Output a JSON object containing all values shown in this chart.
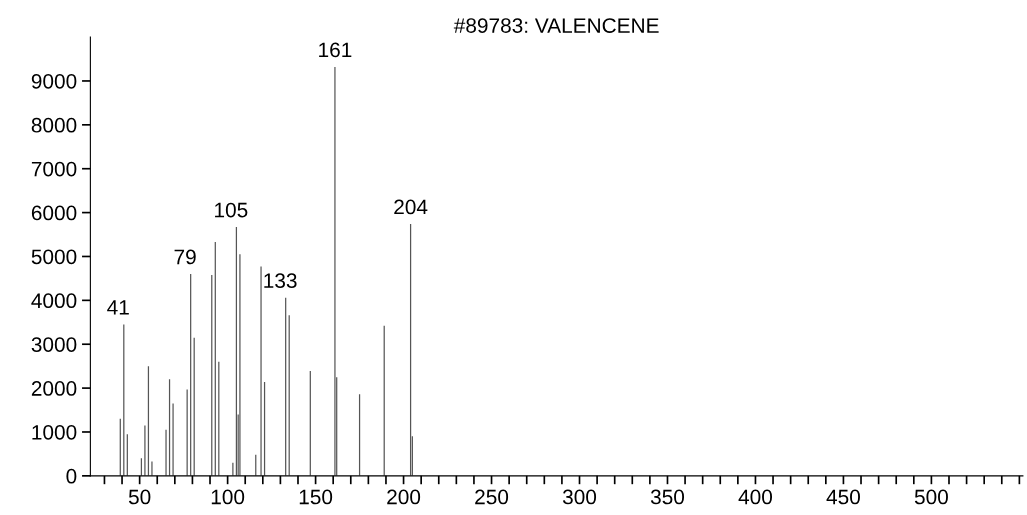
{
  "chart_data": {
    "type": "bar",
    "title": "#89783: VALENCENE",
    "x": [
      39,
      41,
      43,
      51,
      53,
      55,
      57,
      65,
      67,
      69,
      77,
      79,
      81,
      91,
      93,
      95,
      103,
      105,
      106,
      107,
      116,
      119,
      121,
      133,
      135,
      147,
      161,
      162,
      175,
      189,
      204,
      205
    ],
    "values": [
      1300,
      3450,
      950,
      400,
      1150,
      2500,
      330,
      1050,
      2200,
      1650,
      1970,
      4600,
      3150,
      4580,
      5330,
      2600,
      300,
      5670,
      1400,
      5050,
      480,
      4770,
      2140,
      4060,
      3660,
      2390,
      9320,
      2250,
      1860,
      3420,
      5740,
      900
    ],
    "color": "#555555",
    "xlim": [
      22,
      552
    ],
    "xticks": [
      {
        "value": 30,
        "label": null
      },
      {
        "value": 40,
        "label": null
      },
      50,
      {
        "value": 60,
        "label": null
      },
      {
        "value": 70,
        "label": null
      },
      {
        "value": 80,
        "label": null
      },
      {
        "value": 90,
        "label": null
      },
      100,
      {
        "value": 110,
        "label": null
      },
      {
        "value": 120,
        "label": null
      },
      {
        "value": 130,
        "label": null
      },
      {
        "value": 140,
        "label": null
      },
      150,
      {
        "value": 160,
        "label": null
      },
      {
        "value": 170,
        "label": null
      },
      {
        "value": 180,
        "label": null
      },
      {
        "value": 190,
        "label": null
      },
      200,
      {
        "value": 210,
        "label": null
      },
      {
        "value": 220,
        "label": null
      },
      {
        "value": 230,
        "label": null
      },
      {
        "value": 240,
        "label": null
      },
      250,
      {
        "value": 260,
        "label": null
      },
      {
        "value": 270,
        "label": null
      },
      {
        "value": 280,
        "label": null
      },
      {
        "value": 290,
        "label": null
      },
      300,
      {
        "value": 310,
        "label": null
      },
      {
        "value": 320,
        "label": null
      },
      {
        "value": 330,
        "label": null
      },
      {
        "value": 340,
        "label": null
      },
      350,
      {
        "value": 360,
        "label": null
      },
      {
        "value": 370,
        "label": null
      },
      {
        "value": 380,
        "label": null
      },
      {
        "value": 390,
        "label": null
      },
      400,
      {
        "value": 410,
        "label": null
      },
      {
        "value": 420,
        "label": null
      },
      {
        "value": 430,
        "label": null
      },
      {
        "value": 440,
        "label": null
      },
      450,
      {
        "value": 460,
        "label": null
      },
      {
        "value": 470,
        "label": null
      },
      {
        "value": 480,
        "label": null
      },
      {
        "value": 490,
        "label": null
      },
      500,
      {
        "value": 510,
        "label": null
      },
      {
        "value": 520,
        "label": null
      },
      {
        "value": 530,
        "label": null
      },
      {
        "value": 540,
        "label": null
      },
      {
        "value": 550,
        "label": null
      }
    ],
    "ylim": [
      0,
      10000
    ],
    "yticks": [
      0,
      1000,
      2000,
      3000,
      4000,
      5000,
      6000,
      7000,
      8000,
      9000
    ],
    "annotations": [
      {
        "text": "41",
        "x": 41,
        "y": 3450
      },
      {
        "text": "79",
        "x": 79,
        "y": 4600
      },
      {
        "text": "105",
        "x": 105,
        "y": 5670
      },
      {
        "text": "133",
        "x": 133,
        "y": 4060
      },
      {
        "text": "161",
        "x": 161,
        "y": 9320
      },
      {
        "text": "204",
        "x": 204,
        "y": 5740
      }
    ]
  }
}
